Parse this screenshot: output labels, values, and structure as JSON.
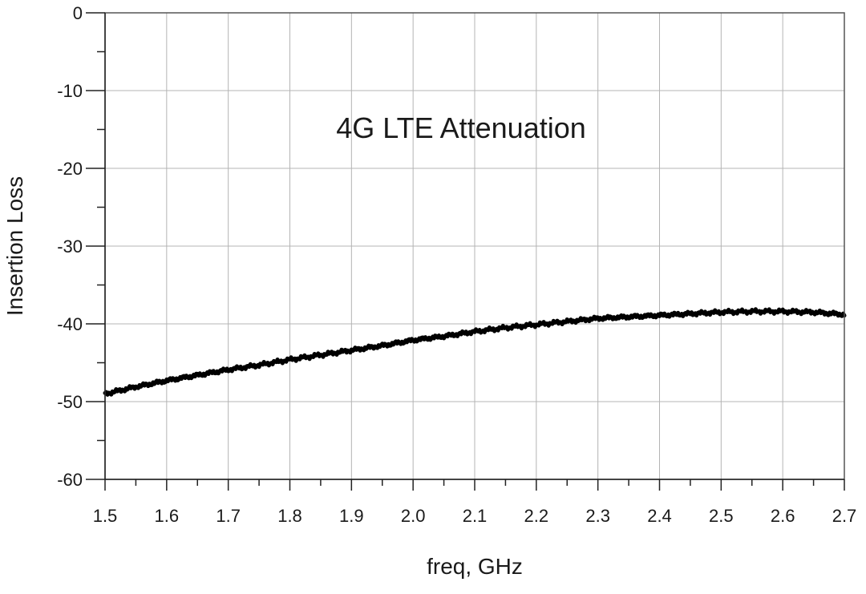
{
  "chart_data": {
    "type": "line",
    "title": "4G LTE Attenuation",
    "xlabel": "freq, GHz",
    "ylabel": "Insertion Loss",
    "xlim": [
      1.5,
      2.7
    ],
    "ylim": [
      -60,
      0
    ],
    "x_ticks": [
      "1.5",
      "1.6",
      "1.7",
      "1.8",
      "1.9",
      "2.0",
      "2.1",
      "2.2",
      "2.3",
      "2.4",
      "2.5",
      "2.6",
      "2.7"
    ],
    "y_ticks": [
      "0",
      "-10",
      "-20",
      "-30",
      "-40",
      "-50",
      "-60"
    ],
    "grid": true,
    "series": [
      {
        "color": "#000000",
        "x": [
          1.5,
          1.55,
          1.6,
          1.65,
          1.7,
          1.75,
          1.8,
          1.85,
          1.9,
          1.95,
          2.0,
          2.05,
          2.1,
          2.15,
          2.2,
          2.25,
          2.3,
          2.35,
          2.4,
          2.45,
          2.5,
          2.55,
          2.6,
          2.65,
          2.7
        ],
        "y": [
          -49.0,
          -48.1,
          -47.3,
          -46.6,
          -45.9,
          -45.3,
          -44.6,
          -44.0,
          -43.4,
          -42.8,
          -42.1,
          -41.6,
          -41.0,
          -40.5,
          -40.1,
          -39.7,
          -39.3,
          -39.1,
          -38.9,
          -38.7,
          -38.5,
          -38.4,
          -38.4,
          -38.5,
          -38.8
        ]
      }
    ]
  }
}
